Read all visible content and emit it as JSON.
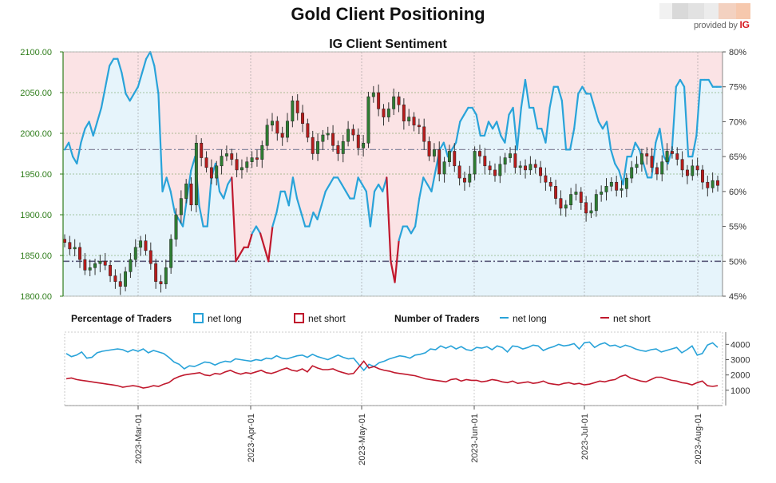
{
  "header": {
    "title": "Gold Client Positioning",
    "subtitle": "IG Client Sentiment",
    "provider_text": "provided by",
    "provider_logo": "IG"
  },
  "colors": {
    "bull_candle": "#2e7d32",
    "bear_candle": "#b71c1c",
    "net_long": "#29a3d9",
    "net_short": "#c0182d",
    "bg_long": "#e6f4fb",
    "bg_short": "#fbe3e5",
    "left_axis": "#2e7d1a",
    "grid": "#3a7d1a"
  },
  "legend": {
    "pct_title": "Percentage of Traders",
    "pct_long": "net long",
    "pct_short": "net short",
    "num_title": "Number of Traders",
    "num_long": "net long",
    "num_short": "net short"
  },
  "chart_data": [
    {
      "type": "candlestick+line",
      "title": "IG Client Sentiment",
      "left_axis": {
        "ticks": [
          "1800.00",
          "1850.00",
          "1900.00",
          "1950.00",
          "2000.00",
          "2050.00",
          "2100.00"
        ],
        "range": [
          1800,
          2100
        ]
      },
      "right_axis": {
        "ticks": [
          "45%",
          "50%",
          "55%",
          "60%",
          "65%",
          "70%",
          "75%",
          "80%"
        ],
        "range": [
          45,
          80
        ]
      },
      "x_ticks": [
        "2023-Mar-01",
        "2023-Apr-01",
        "2023-May-01",
        "2023-Jun-01",
        "2023-Jul-01",
        "2023-Aug-01"
      ],
      "price_close": [
        1866,
        1858,
        1860,
        1845,
        1832,
        1835,
        1840,
        1843,
        1838,
        1825,
        1818,
        1812,
        1830,
        1845,
        1860,
        1868,
        1856,
        1840,
        1818,
        1815,
        1835,
        1870,
        1900,
        1920,
        1938,
        1912,
        1988,
        1970,
        1958,
        1945,
        1960,
        1972,
        1975,
        1968,
        1955,
        1958,
        1965,
        1970,
        1968,
        1985,
        2010,
        2015,
        2000,
        1995,
        2015,
        2040,
        2025,
        2012,
        1995,
        1975,
        1990,
        1998,
        2000,
        1985,
        1975,
        1990,
        2005,
        1998,
        1982,
        1988,
        2045,
        2050,
        2030,
        2020,
        2030,
        2045,
        2035,
        2015,
        2020,
        2010,
        2008,
        1990,
        1972,
        1980,
        1950,
        1965,
        1978,
        1960,
        1945,
        1940,
        1950,
        1978,
        1972,
        1960,
        1955,
        1948,
        1962,
        1970,
        1975,
        1958,
        1960,
        1955,
        1962,
        1958,
        1948,
        1940,
        1935,
        1920,
        1908,
        1912,
        1925,
        1928,
        1915,
        1902,
        1905,
        1925,
        1928,
        1935,
        1940,
        1930,
        1932,
        1945,
        1958,
        1962,
        1975,
        1972,
        1958,
        1950,
        1965,
        1978,
        1975,
        1968,
        1955,
        1948,
        1960,
        1955,
        1940,
        1933,
        1942,
        1936
      ],
      "net_long_pct": [
        66,
        67,
        65,
        64,
        67,
        69,
        70,
        68,
        70,
        72,
        75,
        78,
        79,
        79,
        77,
        74,
        73,
        74,
        75,
        77,
        79,
        80,
        78,
        74,
        60,
        62,
        60,
        57,
        56,
        55,
        59,
        63,
        65,
        58,
        55,
        55,
        62,
        64,
        60,
        59,
        61,
        62,
        50,
        51,
        52,
        52,
        54,
        55,
        54,
        52,
        50,
        55,
        57,
        60,
        60,
        58,
        62,
        59,
        57,
        55,
        55,
        57,
        56,
        58,
        60,
        61,
        62,
        62,
        61,
        60,
        59,
        59,
        62,
        61,
        60,
        55,
        60,
        61,
        60,
        62,
        50,
        47,
        53,
        55,
        55,
        54,
        55,
        59,
        62,
        61,
        60,
        63,
        66,
        67,
        65,
        66,
        67,
        70,
        71,
        72,
        72,
        71,
        68,
        68,
        70,
        69,
        70,
        68,
        67,
        71,
        72,
        66,
        72,
        76,
        72,
        72,
        69,
        69,
        67,
        72,
        75,
        75,
        73,
        66,
        66,
        69,
        74,
        75,
        74,
        74,
        72,
        70,
        69,
        70,
        66,
        64,
        63,
        61,
        65,
        65,
        67,
        66,
        64,
        62,
        62,
        67,
        69,
        65,
        64,
        66,
        75,
        76,
        75,
        65,
        65,
        68,
        76,
        76,
        76,
        75,
        75,
        75
      ]
    },
    {
      "type": "line",
      "title": "Number of Traders",
      "y_ticks": [
        "1000",
        "2000",
        "3000",
        "4000"
      ],
      "series": [
        {
          "name": "net long",
          "values": [
            3400,
            3200,
            3300,
            3500,
            3100,
            3150,
            3450,
            3550,
            3600,
            3650,
            3700,
            3650,
            3500,
            3650,
            3550,
            3700,
            3450,
            3600,
            3500,
            3400,
            3150,
            2850,
            2700,
            2400,
            2600,
            2550,
            2700,
            2850,
            2800,
            2650,
            2800,
            2900,
            2850,
            3050,
            3000,
            2950,
            2900,
            3000,
            2950,
            3100,
            3050,
            3250,
            3100,
            3050,
            3150,
            3250,
            3300,
            3150,
            3350,
            3200,
            3100,
            3000,
            3150,
            3300,
            3150,
            3050,
            3100,
            2700,
            2300,
            2700,
            2550,
            2800,
            2900,
            3050,
            3150,
            3250,
            3200,
            3100,
            3300,
            3350,
            3450,
            3700,
            3650,
            3900,
            3750,
            3900,
            3700,
            3850,
            3650,
            3600,
            3800,
            3750,
            3850,
            3650,
            3900,
            3800,
            3500,
            3900,
            3850,
            3700,
            3800,
            3950,
            3900,
            3600,
            3750,
            3850,
            4000,
            3900,
            3950,
            4050,
            3700,
            4100,
            4150,
            3800,
            4000,
            4100,
            3900,
            3950,
            3800,
            3950,
            3850,
            3700,
            3600,
            3550,
            3650,
            3700,
            3500,
            3600,
            3700,
            3800,
            3450,
            3650,
            3900,
            3300,
            3400,
            3950,
            4100,
            3800
          ]
        },
        {
          "name": "net short",
          "values": [
            1750,
            1800,
            1700,
            1650,
            1600,
            1550,
            1500,
            1450,
            1400,
            1350,
            1300,
            1200,
            1250,
            1300,
            1250,
            1150,
            1200,
            1300,
            1250,
            1400,
            1500,
            1750,
            1900,
            2000,
            2050,
            2100,
            2150,
            2000,
            1950,
            2100,
            2050,
            2200,
            2300,
            2150,
            2050,
            2150,
            2100,
            2200,
            2300,
            2150,
            2100,
            2200,
            2350,
            2450,
            2300,
            2250,
            2400,
            2200,
            2600,
            2450,
            2350,
            2350,
            2400,
            2250,
            2150,
            2050,
            2100,
            2500,
            2900,
            2450,
            2550,
            2400,
            2300,
            2250,
            2150,
            2100,
            2050,
            2000,
            1950,
            1850,
            1750,
            1700,
            1650,
            1600,
            1550,
            1700,
            1750,
            1600,
            1700,
            1650,
            1650,
            1550,
            1600,
            1700,
            1650,
            1550,
            1500,
            1600,
            1450,
            1500,
            1550,
            1450,
            1500,
            1600,
            1450,
            1400,
            1350,
            1450,
            1500,
            1400,
            1450,
            1350,
            1400,
            1500,
            1600,
            1550,
            1650,
            1700,
            1900,
            2000,
            1800,
            1700,
            1600,
            1550,
            1700,
            1850,
            1850,
            1750,
            1650,
            1600,
            1500,
            1450,
            1350,
            1500,
            1600,
            1300,
            1250,
            1300
          ]
        }
      ]
    }
  ]
}
